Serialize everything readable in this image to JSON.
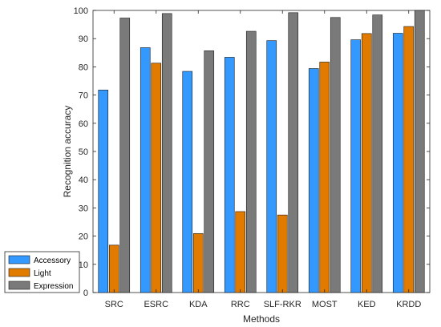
{
  "chart_data": {
    "type": "bar",
    "title": "",
    "xlabel": "Methods",
    "ylabel": "Recognition accuracy",
    "ylim": [
      0,
      100
    ],
    "yticks": [
      0,
      10,
      20,
      30,
      40,
      50,
      60,
      70,
      80,
      90,
      100
    ],
    "grid": false,
    "legend_position": "bottom-left",
    "categories": [
      "SRC",
      "ESRC",
      "KDA",
      "RRC",
      "SLF-RKR",
      "MOST",
      "KED",
      "KRDD"
    ],
    "series": [
      {
        "name": "Accessory",
        "color": "#3399ff",
        "values": [
          71.8,
          86.8,
          78.4,
          83.4,
          89.3,
          79.4,
          89.6,
          91.9
        ]
      },
      {
        "name": "Light",
        "color": "#e07b00",
        "values": [
          16.8,
          81.3,
          20.9,
          28.7,
          27.5,
          81.7,
          91.8,
          94.3
        ]
      },
      {
        "name": "Expression",
        "color": "#7a7a7a",
        "values": [
          97.3,
          98.9,
          85.7,
          92.6,
          99.2,
          97.5,
          98.4,
          100
        ]
      }
    ]
  }
}
